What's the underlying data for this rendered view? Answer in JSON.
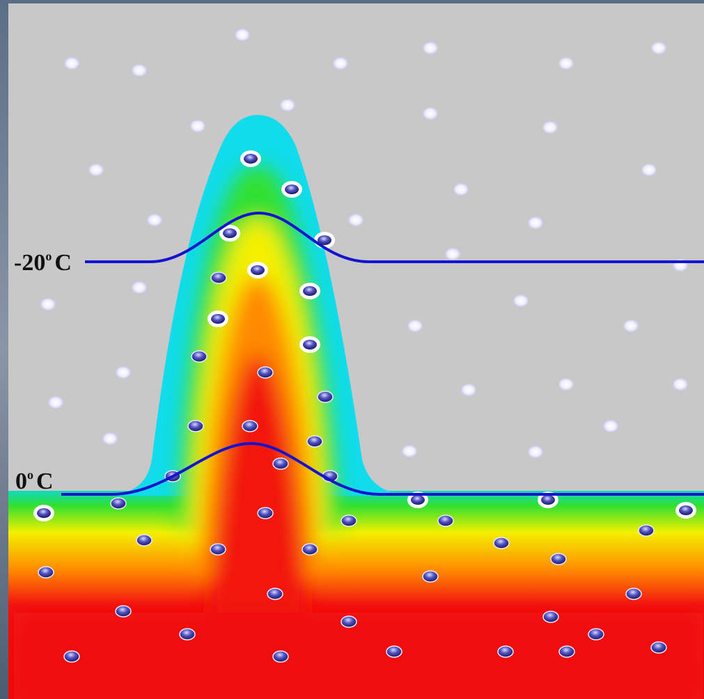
{
  "isotherms": [
    {
      "value": "-20",
      "degree": "o",
      "unit": "C"
    },
    {
      "value": "0",
      "degree": "o",
      "unit": "C"
    }
  ]
}
